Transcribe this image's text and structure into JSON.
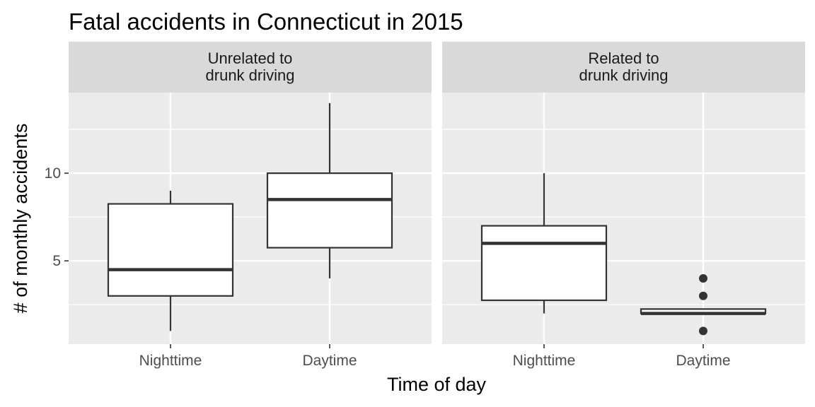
{
  "chart_data": {
    "type": "boxplot",
    "title": "Fatal accidents in Connecticut in 2015",
    "xlabel": "Time of day",
    "ylabel": "# of monthly accidents",
    "ylim": [
      0.25,
      14.6
    ],
    "y_ticks": [
      5,
      10
    ],
    "grid": true,
    "categories": [
      "Nighttime",
      "Daytime"
    ],
    "panels": [
      {
        "label": "Unrelated to\ndrunk driving",
        "boxes": [
          {
            "category": "Nighttime",
            "min": 1,
            "q1": 3,
            "median": 4.5,
            "q3": 8.25,
            "max": 9,
            "outliers": []
          },
          {
            "category": "Daytime",
            "min": 4,
            "q1": 5.75,
            "median": 8.5,
            "q3": 10,
            "max": 14,
            "outliers": []
          }
        ]
      },
      {
        "label": "Related to\ndrunk driving",
        "boxes": [
          {
            "category": "Nighttime",
            "min": 2,
            "q1": 2.75,
            "median": 6,
            "q3": 7,
            "max": 10,
            "outliers": []
          },
          {
            "category": "Daytime",
            "min": 2,
            "q1": 2,
            "median": 2,
            "q3": 2.25,
            "max": 2.25,
            "outliers": [
              4,
              3,
              1
            ]
          }
        ]
      }
    ]
  }
}
